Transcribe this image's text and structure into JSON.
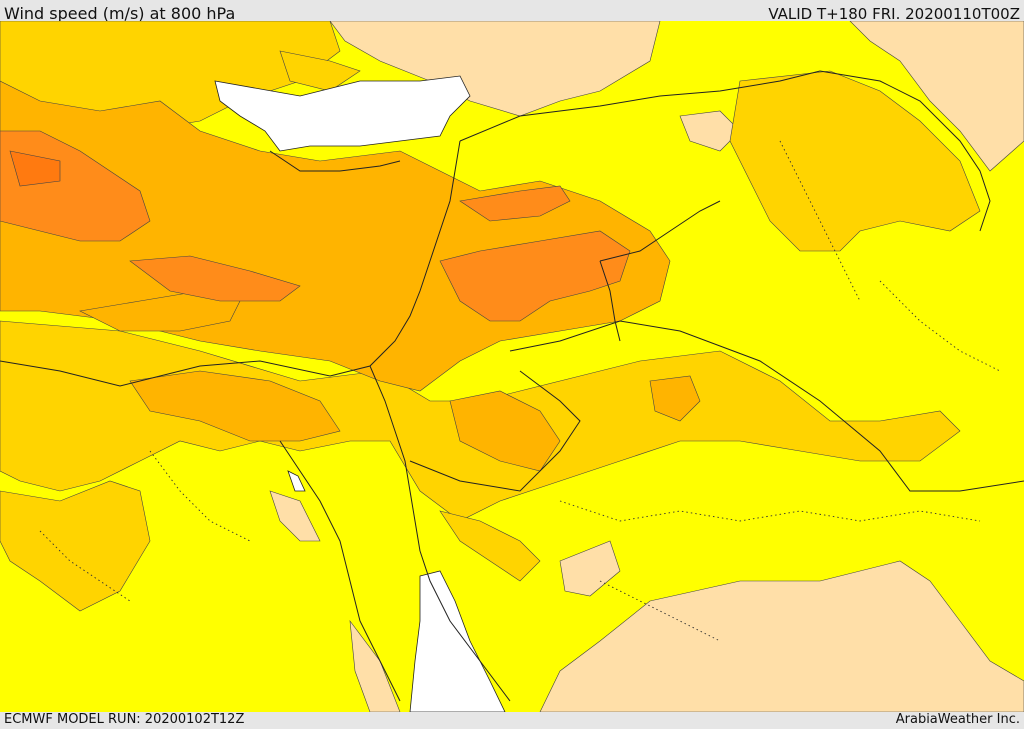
{
  "header": {
    "title": "Wind speed (m/s) at 800 hPa",
    "valid": "VALID T+180 FRI. 20200110T00Z"
  },
  "footer": {
    "model_run": "ECMWF MODEL RUN: 20200102T12Z",
    "credit": "ArabiaWeather Inc."
  },
  "map": {
    "colors": {
      "band_low": "#ffdfa8",
      "band_1": "#ffff00",
      "band_2": "#ffd400",
      "band_3": "#ffb400",
      "band_4": "#ff8c1a",
      "water_unfilled": "#ffffff",
      "border": "#222222"
    }
  }
}
